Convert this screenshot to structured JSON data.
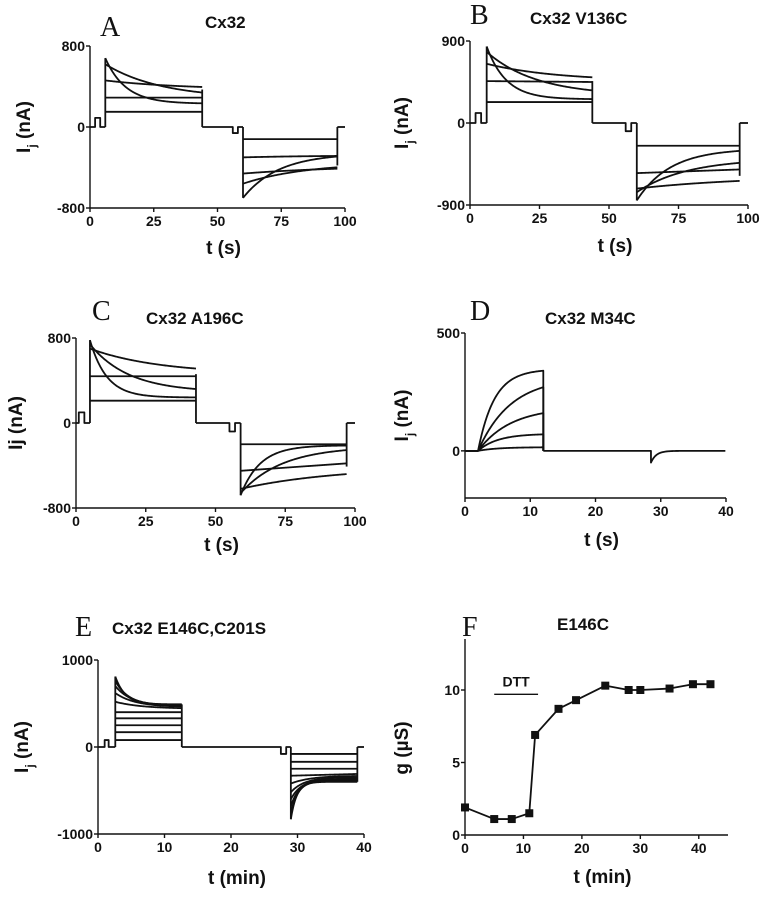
{
  "chart_data": [
    {
      "id": "A",
      "type": "line",
      "panel_letter": "A",
      "title": "Cx32",
      "xlabel": "t (s)",
      "ylabel": "I_j (nA)",
      "ylabel_main": "I",
      "ylabel_sub": "j",
      "ylabel_rest": " (nA)",
      "xlim": [
        0,
        100
      ],
      "ylim": [
        -800,
        800
      ],
      "xticks": [
        0,
        25,
        50,
        75,
        100
      ],
      "yticks": [
        800,
        0,
        -800
      ],
      "protocol": {
        "pulse1_start": 6,
        "pulse1_end": 44,
        "pulse2_start": 60,
        "pulse2_end": 97,
        "prepulse": [
          2,
          4,
          90
        ],
        "mid_dip": [
          56,
          58,
          -60
        ]
      },
      "series_pos": [
        {
          "start": 150,
          "end": 150,
          "tau": 0
        },
        {
          "start": 290,
          "end": 290,
          "tau": 0
        },
        {
          "start": 460,
          "end": 370,
          "tau": 30
        },
        {
          "start": 620,
          "end": 280,
          "tau": 22
        },
        {
          "start": 680,
          "end": 230,
          "tau": 8
        }
      ],
      "series_neg": [
        {
          "start": -120,
          "end": -120,
          "tau": 0
        },
        {
          "start": -300,
          "end": -280,
          "tau": 30
        },
        {
          "start": -460,
          "end": -380,
          "tau": 40
        },
        {
          "start": -560,
          "end": -350,
          "tau": 25
        },
        {
          "start": -700,
          "end": -260,
          "tau": 14
        }
      ]
    },
    {
      "id": "B",
      "type": "line",
      "panel_letter": "B",
      "title": "Cx32 V136C",
      "xlabel": "t (s)",
      "ylabel": "I_j (nA)",
      "ylabel_main": "I",
      "ylabel_sub": "j",
      "ylabel_rest": " (nA)",
      "xlim": [
        0,
        100
      ],
      "ylim": [
        -900,
        900
      ],
      "xticks": [
        0,
        25,
        50,
        75,
        100
      ],
      "yticks": [
        900,
        0,
        -900
      ],
      "protocol": {
        "pulse1_start": 6,
        "pulse1_end": 44,
        "pulse2_start": 60,
        "pulse2_end": 97,
        "prepulse": [
          2,
          4,
          110
        ],
        "mid_dip": [
          56,
          58,
          -90
        ]
      },
      "series_pos": [
        {
          "start": 230,
          "end": 230,
          "tau": 0
        },
        {
          "start": 460,
          "end": 450,
          "tau": 0
        },
        {
          "start": 650,
          "end": 460,
          "tau": 25
        },
        {
          "start": 780,
          "end": 300,
          "tau": 18
        },
        {
          "start": 840,
          "end": 260,
          "tau": 7
        }
      ],
      "series_neg": [
        {
          "start": -250,
          "end": -250,
          "tau": 0
        },
        {
          "start": -550,
          "end": -510,
          "tau": 0
        },
        {
          "start": -720,
          "end": -580,
          "tau": 40
        },
        {
          "start": -760,
          "end": -390,
          "tau": 18
        },
        {
          "start": -850,
          "end": -280,
          "tau": 12
        }
      ]
    },
    {
      "id": "C",
      "type": "line",
      "panel_letter": "C",
      "title": "Cx32 A196C",
      "xlabel": "t (s)",
      "ylabel": "Ij (nA)",
      "ylabel_main": "Ij",
      "ylabel_sub": "",
      "ylabel_rest": " (nA)",
      "xlim": [
        0,
        100
      ],
      "ylim": [
        -800,
        800
      ],
      "xticks": [
        0,
        25,
        50,
        75,
        100
      ],
      "yticks": [
        800,
        0,
        -800
      ],
      "protocol": {
        "pulse1_start": 5,
        "pulse1_end": 43,
        "pulse2_start": 59,
        "pulse2_end": 97,
        "prepulse": [
          1,
          3,
          100
        ],
        "mid_dip": [
          55,
          57,
          -80
        ]
      },
      "series_pos": [
        {
          "start": 210,
          "end": 210,
          "tau": 0
        },
        {
          "start": 440,
          "end": 440,
          "tau": 0
        },
        {
          "start": 700,
          "end": 460,
          "tau": 25
        },
        {
          "start": 740,
          "end": 290,
          "tau": 14
        },
        {
          "start": 780,
          "end": 240,
          "tau": 6
        }
      ],
      "series_neg": [
        {
          "start": -200,
          "end": -200,
          "tau": 0
        },
        {
          "start": -450,
          "end": -380,
          "tau": 0
        },
        {
          "start": -620,
          "end": -410,
          "tau": 35
        },
        {
          "start": -660,
          "end": -220,
          "tau": 15
        },
        {
          "start": -680,
          "end": -210,
          "tau": 7
        }
      ]
    },
    {
      "id": "D",
      "type": "line",
      "panel_letter": "D",
      "title": "Cx32 M34C",
      "xlabel": "t (s)",
      "ylabel": "I_j (nA)",
      "ylabel_main": "I",
      "ylabel_sub": "j",
      "ylabel_rest": " (nA)",
      "xlim": [
        0,
        40
      ],
      "ylim": [
        -200,
        500
      ],
      "xticks": [
        0,
        10,
        20,
        30,
        40
      ],
      "yticks": [
        500,
        0
      ],
      "protocol": {
        "pulse_start": 2,
        "pulse_end": 12,
        "tail_at": 28.5,
        "tail_min": -50
      },
      "series": [
        {
          "plateau": 15,
          "tau": 3
        },
        {
          "plateau": 70,
          "tau": 3
        },
        {
          "plateau": 160,
          "tau": 5
        },
        {
          "plateau": 270,
          "tau": 5
        },
        {
          "plateau": 340,
          "tau": 2.5
        }
      ]
    },
    {
      "id": "E",
      "type": "line",
      "panel_letter": "E",
      "title": "Cx32 E146C,C201S",
      "xlabel": "t (min)",
      "ylabel": "I_j (nA)",
      "ylabel_main": "I",
      "ylabel_sub": "j",
      "ylabel_rest": " (nA)",
      "xlim": [
        0,
        40
      ],
      "ylim": [
        -1000,
        1000
      ],
      "xticks": [
        0,
        10,
        20,
        30,
        40
      ],
      "yticks": [
        1000,
        0,
        -1000
      ],
      "protocol": {
        "pulse1_start": 2.6,
        "pulse1_end": 12.6,
        "pulse2_start": 29,
        "pulse2_end": 39,
        "prepulse": [
          1,
          1.6,
          80
        ],
        "mid_dip": [
          27.5,
          28.3,
          -80
        ]
      },
      "series_pos": [
        {
          "start": 80,
          "end": 80,
          "tau": 0
        },
        {
          "start": 170,
          "end": 170,
          "tau": 0
        },
        {
          "start": 250,
          "end": 250,
          "tau": 0
        },
        {
          "start": 330,
          "end": 330,
          "tau": 0
        },
        {
          "start": 400,
          "end": 400,
          "tau": 0
        },
        {
          "start": 520,
          "end": 440,
          "tau": 4
        },
        {
          "start": 620,
          "end": 460,
          "tau": 3
        },
        {
          "start": 700,
          "end": 470,
          "tau": 2.5
        },
        {
          "start": 760,
          "end": 480,
          "tau": 2
        },
        {
          "start": 810,
          "end": 490,
          "tau": 1.5
        }
      ],
      "series_neg": [
        {
          "start": -80,
          "end": -80,
          "tau": 0
        },
        {
          "start": -170,
          "end": -170,
          "tau": 0
        },
        {
          "start": -250,
          "end": -250,
          "tau": 0
        },
        {
          "start": -330,
          "end": -310,
          "tau": 0
        },
        {
          "start": -420,
          "end": -330,
          "tau": 3
        },
        {
          "start": -520,
          "end": -350,
          "tau": 2
        },
        {
          "start": -600,
          "end": -370,
          "tau": 1.6
        },
        {
          "start": -680,
          "end": -380,
          "tau": 1.3
        },
        {
          "start": -760,
          "end": -390,
          "tau": 1.1
        },
        {
          "start": -830,
          "end": -400,
          "tau": 0.9
        }
      ]
    },
    {
      "id": "F",
      "type": "scatter",
      "panel_letter": "F",
      "title": "E146C",
      "xlabel": "t (min)",
      "ylabel": "g (µS)",
      "xlim": [
        0,
        45
      ],
      "ylim": [
        0,
        12
      ],
      "xticks": [
        0,
        10,
        20,
        30,
        40
      ],
      "yticks": [
        0,
        5,
        10
      ],
      "annotation": {
        "text": "DTT",
        "x_start": 5,
        "x_end": 12.5,
        "y": 9.7
      },
      "x": [
        0,
        5,
        8,
        11,
        12,
        16,
        19,
        24,
        28,
        30,
        35,
        39,
        42
      ],
      "y": [
        1.9,
        1.1,
        1.1,
        1.5,
        6.9,
        8.7,
        9.3,
        10.3,
        10.0,
        10.0,
        10.1,
        10.4,
        10.4
      ]
    }
  ]
}
